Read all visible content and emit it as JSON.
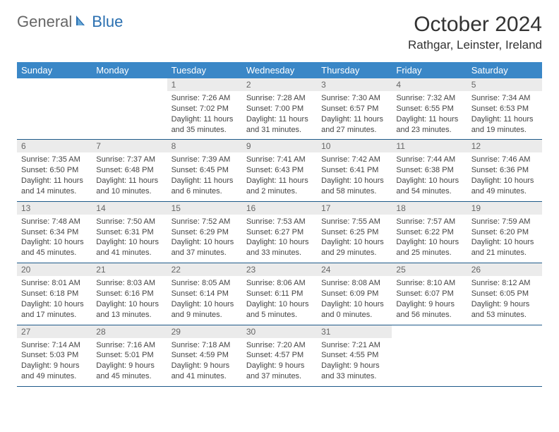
{
  "logo": {
    "text1": "General",
    "text2": "Blue"
  },
  "title": "October 2024",
  "location": "Rathgar, Leinster, Ireland",
  "day_headers": [
    "Sunday",
    "Monday",
    "Tuesday",
    "Wednesday",
    "Thursday",
    "Friday",
    "Saturday"
  ],
  "colors": {
    "header_bg": "#3a87c7",
    "row_border": "#1e5a8a",
    "daynum_bg": "#ebebeb",
    "logo_accent": "#2a6fb0"
  },
  "weeks": [
    [
      {
        "n": "",
        "sr": "",
        "ss": "",
        "dl": ""
      },
      {
        "n": "",
        "sr": "",
        "ss": "",
        "dl": ""
      },
      {
        "n": "1",
        "sr": "Sunrise: 7:26 AM",
        "ss": "Sunset: 7:02 PM",
        "dl": "Daylight: 11 hours and 35 minutes."
      },
      {
        "n": "2",
        "sr": "Sunrise: 7:28 AM",
        "ss": "Sunset: 7:00 PM",
        "dl": "Daylight: 11 hours and 31 minutes."
      },
      {
        "n": "3",
        "sr": "Sunrise: 7:30 AM",
        "ss": "Sunset: 6:57 PM",
        "dl": "Daylight: 11 hours and 27 minutes."
      },
      {
        "n": "4",
        "sr": "Sunrise: 7:32 AM",
        "ss": "Sunset: 6:55 PM",
        "dl": "Daylight: 11 hours and 23 minutes."
      },
      {
        "n": "5",
        "sr": "Sunrise: 7:34 AM",
        "ss": "Sunset: 6:53 PM",
        "dl": "Daylight: 11 hours and 19 minutes."
      }
    ],
    [
      {
        "n": "6",
        "sr": "Sunrise: 7:35 AM",
        "ss": "Sunset: 6:50 PM",
        "dl": "Daylight: 11 hours and 14 minutes."
      },
      {
        "n": "7",
        "sr": "Sunrise: 7:37 AM",
        "ss": "Sunset: 6:48 PM",
        "dl": "Daylight: 11 hours and 10 minutes."
      },
      {
        "n": "8",
        "sr": "Sunrise: 7:39 AM",
        "ss": "Sunset: 6:45 PM",
        "dl": "Daylight: 11 hours and 6 minutes."
      },
      {
        "n": "9",
        "sr": "Sunrise: 7:41 AM",
        "ss": "Sunset: 6:43 PM",
        "dl": "Daylight: 11 hours and 2 minutes."
      },
      {
        "n": "10",
        "sr": "Sunrise: 7:42 AM",
        "ss": "Sunset: 6:41 PM",
        "dl": "Daylight: 10 hours and 58 minutes."
      },
      {
        "n": "11",
        "sr": "Sunrise: 7:44 AM",
        "ss": "Sunset: 6:38 PM",
        "dl": "Daylight: 10 hours and 54 minutes."
      },
      {
        "n": "12",
        "sr": "Sunrise: 7:46 AM",
        "ss": "Sunset: 6:36 PM",
        "dl": "Daylight: 10 hours and 49 minutes."
      }
    ],
    [
      {
        "n": "13",
        "sr": "Sunrise: 7:48 AM",
        "ss": "Sunset: 6:34 PM",
        "dl": "Daylight: 10 hours and 45 minutes."
      },
      {
        "n": "14",
        "sr": "Sunrise: 7:50 AM",
        "ss": "Sunset: 6:31 PM",
        "dl": "Daylight: 10 hours and 41 minutes."
      },
      {
        "n": "15",
        "sr": "Sunrise: 7:52 AM",
        "ss": "Sunset: 6:29 PM",
        "dl": "Daylight: 10 hours and 37 minutes."
      },
      {
        "n": "16",
        "sr": "Sunrise: 7:53 AM",
        "ss": "Sunset: 6:27 PM",
        "dl": "Daylight: 10 hours and 33 minutes."
      },
      {
        "n": "17",
        "sr": "Sunrise: 7:55 AM",
        "ss": "Sunset: 6:25 PM",
        "dl": "Daylight: 10 hours and 29 minutes."
      },
      {
        "n": "18",
        "sr": "Sunrise: 7:57 AM",
        "ss": "Sunset: 6:22 PM",
        "dl": "Daylight: 10 hours and 25 minutes."
      },
      {
        "n": "19",
        "sr": "Sunrise: 7:59 AM",
        "ss": "Sunset: 6:20 PM",
        "dl": "Daylight: 10 hours and 21 minutes."
      }
    ],
    [
      {
        "n": "20",
        "sr": "Sunrise: 8:01 AM",
        "ss": "Sunset: 6:18 PM",
        "dl": "Daylight: 10 hours and 17 minutes."
      },
      {
        "n": "21",
        "sr": "Sunrise: 8:03 AM",
        "ss": "Sunset: 6:16 PM",
        "dl": "Daylight: 10 hours and 13 minutes."
      },
      {
        "n": "22",
        "sr": "Sunrise: 8:05 AM",
        "ss": "Sunset: 6:14 PM",
        "dl": "Daylight: 10 hours and 9 minutes."
      },
      {
        "n": "23",
        "sr": "Sunrise: 8:06 AM",
        "ss": "Sunset: 6:11 PM",
        "dl": "Daylight: 10 hours and 5 minutes."
      },
      {
        "n": "24",
        "sr": "Sunrise: 8:08 AM",
        "ss": "Sunset: 6:09 PM",
        "dl": "Daylight: 10 hours and 0 minutes."
      },
      {
        "n": "25",
        "sr": "Sunrise: 8:10 AM",
        "ss": "Sunset: 6:07 PM",
        "dl": "Daylight: 9 hours and 56 minutes."
      },
      {
        "n": "26",
        "sr": "Sunrise: 8:12 AM",
        "ss": "Sunset: 6:05 PM",
        "dl": "Daylight: 9 hours and 53 minutes."
      }
    ],
    [
      {
        "n": "27",
        "sr": "Sunrise: 7:14 AM",
        "ss": "Sunset: 5:03 PM",
        "dl": "Daylight: 9 hours and 49 minutes."
      },
      {
        "n": "28",
        "sr": "Sunrise: 7:16 AM",
        "ss": "Sunset: 5:01 PM",
        "dl": "Daylight: 9 hours and 45 minutes."
      },
      {
        "n": "29",
        "sr": "Sunrise: 7:18 AM",
        "ss": "Sunset: 4:59 PM",
        "dl": "Daylight: 9 hours and 41 minutes."
      },
      {
        "n": "30",
        "sr": "Sunrise: 7:20 AM",
        "ss": "Sunset: 4:57 PM",
        "dl": "Daylight: 9 hours and 37 minutes."
      },
      {
        "n": "31",
        "sr": "Sunrise: 7:21 AM",
        "ss": "Sunset: 4:55 PM",
        "dl": "Daylight: 9 hours and 33 minutes."
      },
      {
        "n": "",
        "sr": "",
        "ss": "",
        "dl": ""
      },
      {
        "n": "",
        "sr": "",
        "ss": "",
        "dl": ""
      }
    ]
  ]
}
